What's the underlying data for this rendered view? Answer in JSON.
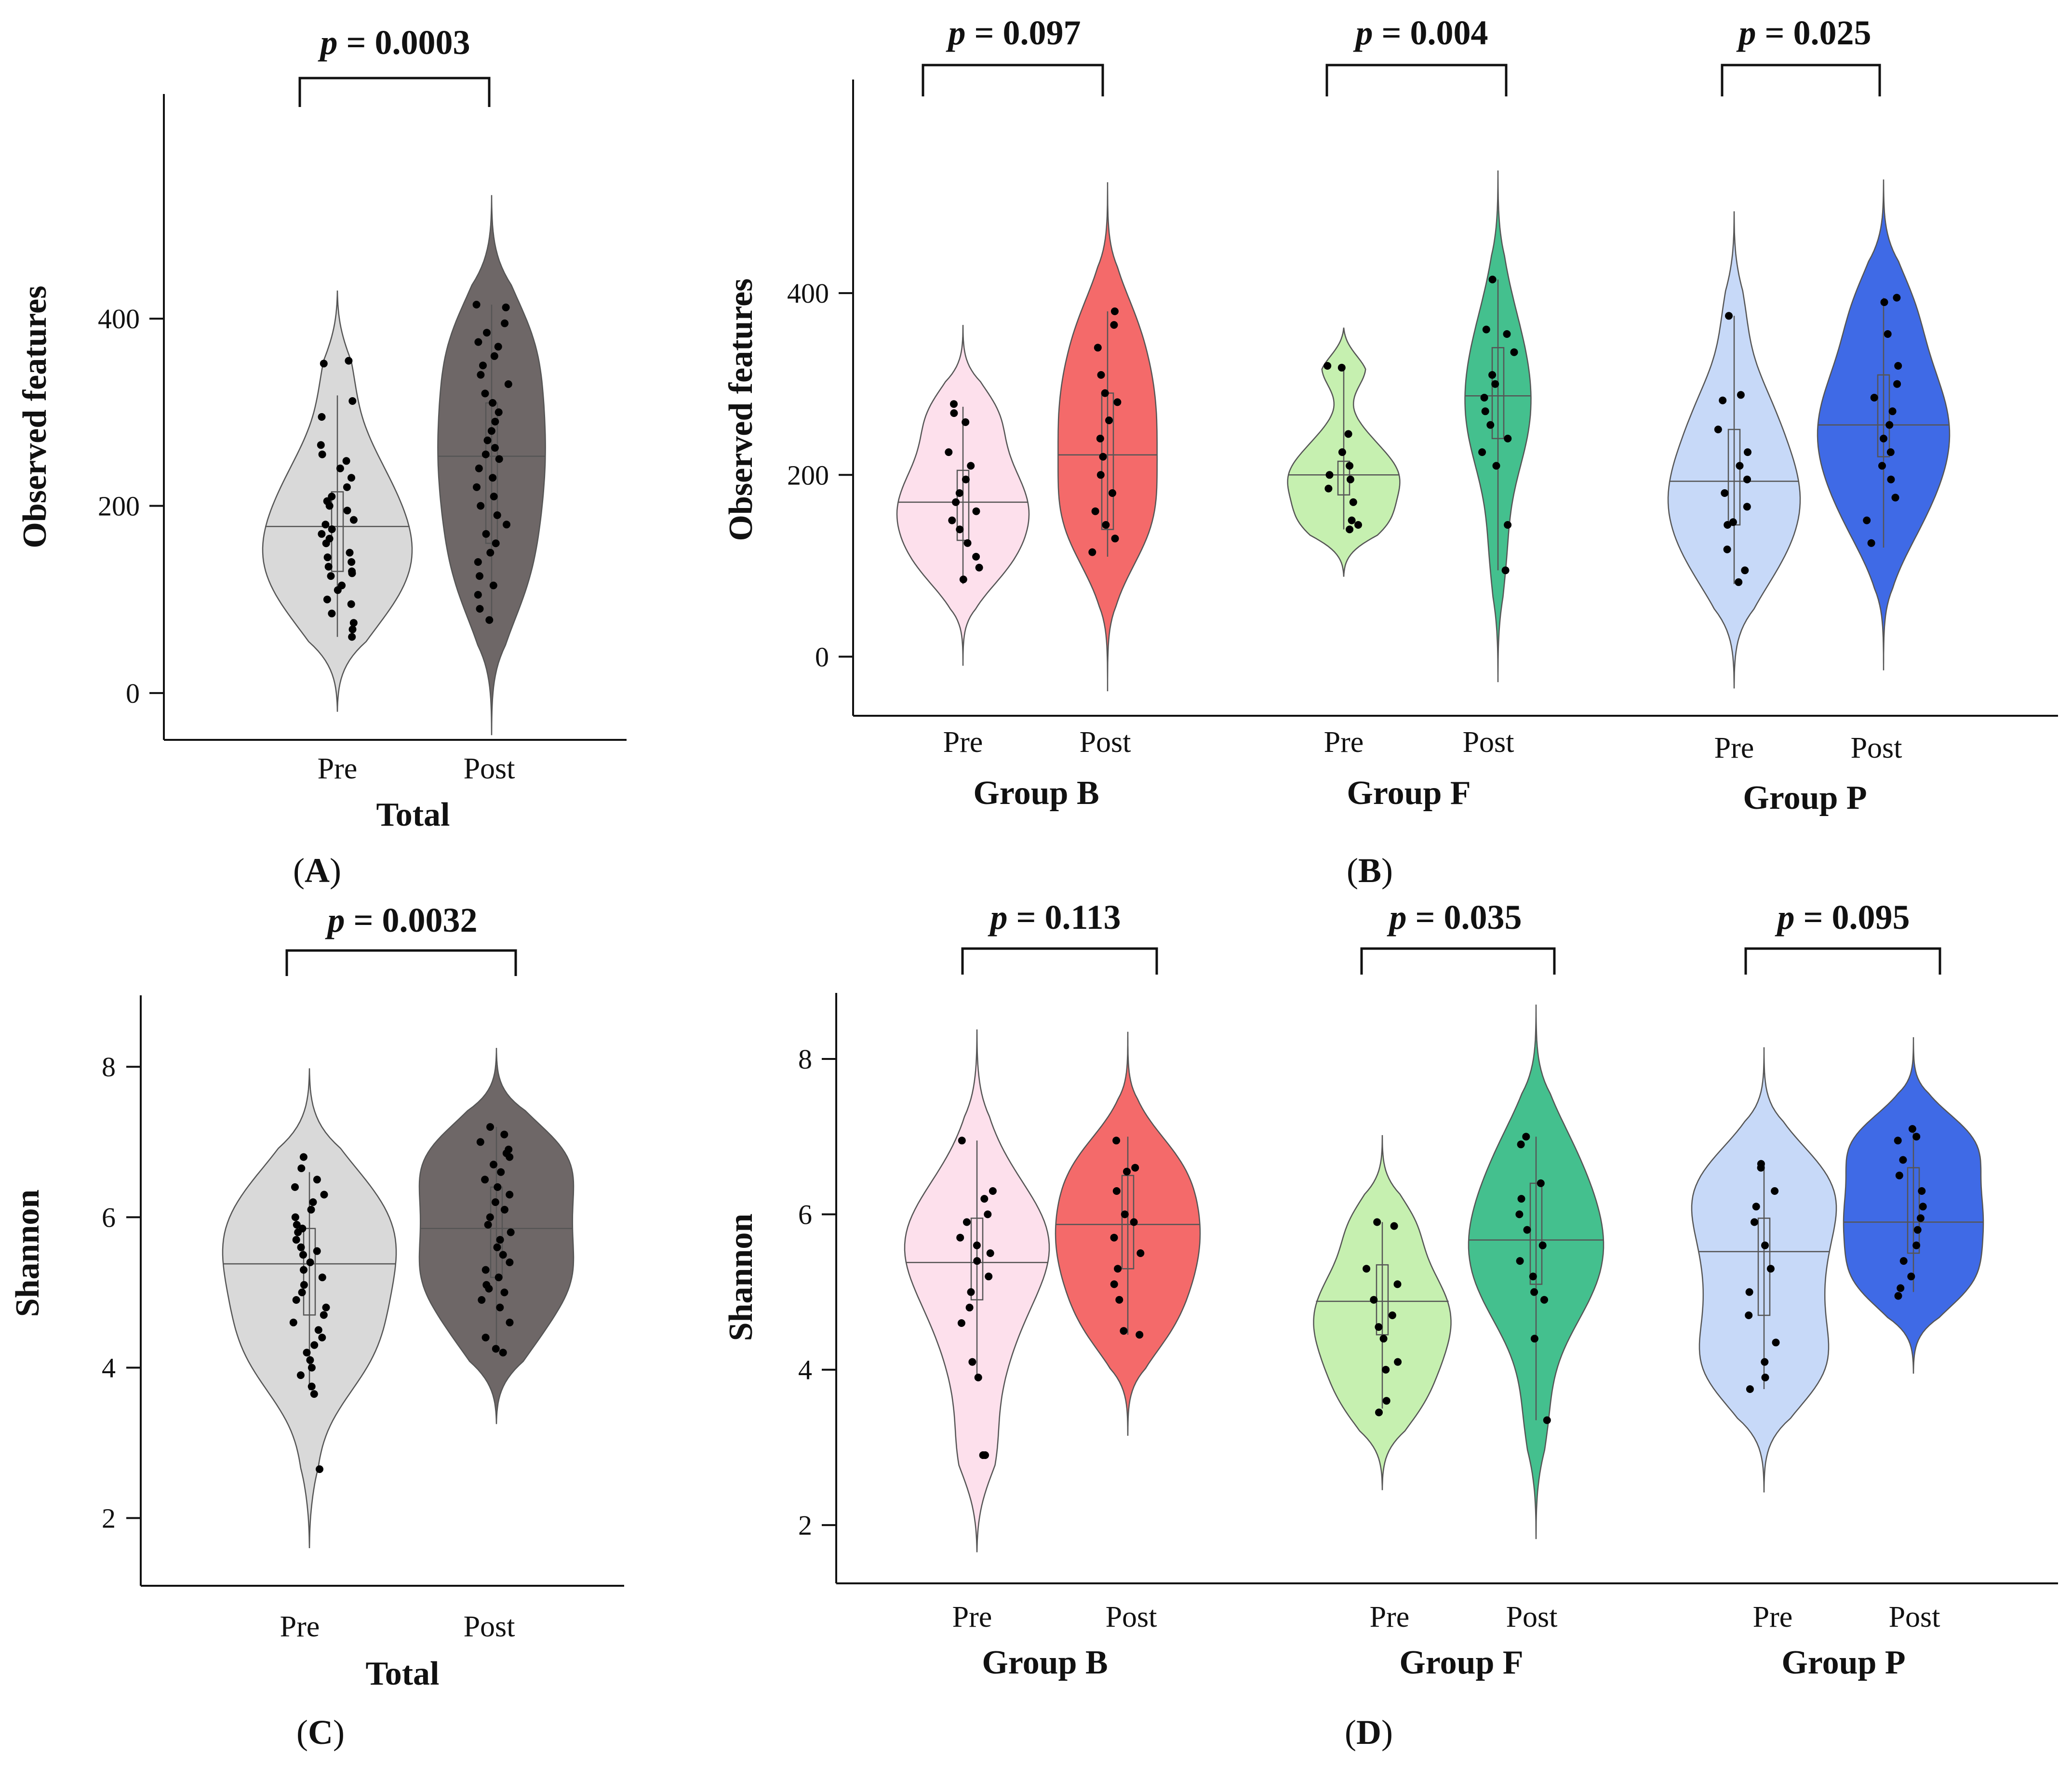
{
  "colors": {
    "total_pre": "#d9d9d9",
    "total_post": "#6e6767",
    "b_pre": "#fde0ec",
    "b_post": "#f46a6a",
    "f_pre": "#c6f0b0",
    "f_post": "#44c08e",
    "p_pre": "#c7d9f8",
    "p_post": "#3f6ae6"
  },
  "chart_data": [
    {
      "panel": "A",
      "type": "violin",
      "ylabel": "Observed features",
      "yticks": [
        0,
        200,
        400
      ],
      "ylim": [
        -50,
        640
      ],
      "groups": [
        {
          "name": "Total",
          "p_label": "p",
          "p_value": "= 0.0003",
          "series": [
            {
              "name": "Pre",
              "color_key": "total_pre",
              "median": 178,
              "q1": 130,
              "q3": 215,
              "wlo": 60,
              "whi": 318,
              "vmin": -20,
              "vmax": 430,
              "width": 1.0,
              "points": [
                352,
                355,
                312,
                295,
                265,
                255,
                248,
                240,
                230,
                220,
                210,
                205,
                200,
                195,
                185,
                180,
                175,
                170,
                165,
                160,
                150,
                145,
                140,
                135,
                130,
                128,
                125,
                115,
                110,
                100,
                95,
                85,
                75,
                68,
                60
              ]
            },
            {
              "name": "Post",
              "color_key": "total_post",
              "median": 253,
              "q1": 160,
              "q3": 310,
              "wlo": 80,
              "whi": 415,
              "vmin": -45,
              "vmax": 532,
              "width": 0.72,
              "points": [
                415,
                412,
                395,
                385,
                375,
                370,
                360,
                350,
                340,
                330,
                320,
                310,
                300,
                290,
                280,
                270,
                262,
                255,
                250,
                240,
                230,
                220,
                210,
                200,
                190,
                180,
                170,
                160,
                150,
                140,
                125,
                115,
                105,
                90,
                78
              ]
            }
          ]
        }
      ]
    },
    {
      "panel": "B",
      "type": "violin",
      "ylabel": "Observed features",
      "yticks": [
        0,
        200,
        400
      ],
      "ylim": [
        -65,
        635
      ],
      "groups": [
        {
          "name": "Group B",
          "p_label": "p",
          "p_value": "= 0.097",
          "series": [
            {
              "name": "Pre",
              "color_key": "b_pre",
              "median": 170,
              "q1": 128,
              "q3": 205,
              "wlo": 80,
              "whi": 275,
              "vmin": -10,
              "vmax": 365,
              "width": 1.0,
              "points": [
                278,
                268,
                258,
                225,
                210,
                195,
                180,
                170,
                160,
                150,
                140,
                125,
                110,
                98,
                85
              ]
            },
            {
              "name": "Post",
              "color_key": "b_post",
              "median": 222,
              "q1": 140,
              "q3": 290,
              "wlo": 110,
              "whi": 380,
              "vmin": -38,
              "vmax": 522,
              "width": 0.75,
              "points": [
                380,
                365,
                340,
                310,
                290,
                280,
                260,
                240,
                220,
                200,
                180,
                160,
                145,
                130,
                115
              ]
            }
          ]
        },
        {
          "name": "Group F",
          "p_label": "p",
          "p_value": "= 0.004",
          "series": [
            {
              "name": "Pre",
              "color_key": "f_pre",
              "median": 200,
              "q1": 178,
              "q3": 215,
              "wlo": 140,
              "whi": 320,
              "vmin": 88,
              "vmax": 362,
              "width": 0.85,
              "points": [
                320,
                318,
                245,
                225,
                210,
                200,
                195,
                185,
                170,
                150,
                145,
                140
              ]
            },
            {
              "name": "Post",
              "color_key": "f_post",
              "median": 287,
              "q1": 240,
              "q3": 340,
              "wlo": 95,
              "whi": 415,
              "vmin": -28,
              "vmax": 535,
              "width": 0.5,
              "points": [
                415,
                360,
                355,
                335,
                310,
                300,
                285,
                270,
                255,
                240,
                225,
                210,
                145,
                95
              ]
            }
          ]
        },
        {
          "name": "Group P",
          "p_label": "p",
          "p_value": "= 0.025",
          "series": [
            {
              "name": "Pre",
              "color_key": "p_pre",
              "median": 193,
              "q1": 145,
              "q3": 250,
              "wlo": 80,
              "whi": 375,
              "vmin": -35,
              "vmax": 490,
              "width": 1.0,
              "points": [
                375,
                288,
                282,
                250,
                225,
                210,
                195,
                180,
                165,
                148,
                145,
                118,
                95,
                82
              ]
            },
            {
              "name": "Post",
              "color_key": "p_post",
              "median": 255,
              "q1": 220,
              "q3": 310,
              "wlo": 120,
              "whi": 395,
              "vmin": -15,
              "vmax": 525,
              "width": 1.0,
              "points": [
                395,
                390,
                355,
                320,
                300,
                285,
                270,
                255,
                240,
                225,
                210,
                195,
                175,
                150,
                125
              ]
            }
          ]
        }
      ]
    },
    {
      "panel": "C",
      "type": "violin",
      "ylabel": "Shannon",
      "yticks": [
        2,
        4,
        6,
        8
      ],
      "ylim": [
        1.1,
        8.95
      ],
      "groups": [
        {
          "name": "Total",
          "p_label": "p",
          "p_value": "= 0.0032",
          "series": [
            {
              "name": "Pre",
              "color_key": "total_pre",
              "median": 5.38,
              "q1": 4.7,
              "q3": 5.85,
              "wlo": 3.7,
              "whi": 6.6,
              "vmin": 1.6,
              "vmax": 7.98,
              "width": 1.0,
              "points": [
                6.8,
                6.65,
                6.5,
                6.4,
                6.3,
                6.2,
                6.1,
                6.0,
                5.9,
                5.85,
                5.8,
                5.7,
                5.6,
                5.55,
                5.5,
                5.4,
                5.3,
                5.2,
                5.1,
                5.0,
                4.9,
                4.8,
                4.7,
                4.6,
                4.5,
                4.4,
                4.3,
                4.2,
                4.1,
                4.0,
                3.9,
                3.75,
                3.65,
                2.65
              ]
            },
            {
              "name": "Post",
              "color_key": "total_post",
              "median": 5.85,
              "q1": 5.2,
              "q3": 6.4,
              "wlo": 4.2,
              "whi": 7.2,
              "vmin": 3.25,
              "vmax": 8.25,
              "width": 1.0,
              "points": [
                7.2,
                7.1,
                7.0,
                6.9,
                6.85,
                6.8,
                6.7,
                6.6,
                6.5,
                6.4,
                6.3,
                6.2,
                6.1,
                6.0,
                5.9,
                5.8,
                5.7,
                5.6,
                5.5,
                5.4,
                5.3,
                5.2,
                5.1,
                5.05,
                5.0,
                4.9,
                4.8,
                4.6,
                4.4,
                4.25,
                4.2
              ]
            }
          ]
        }
      ]
    },
    {
      "panel": "D",
      "type": "violin",
      "ylabel": "Shannon",
      "yticks": [
        2,
        4,
        6,
        8
      ],
      "ylim": [
        1.25,
        8.85
      ],
      "groups": [
        {
          "name": "Group B",
          "p_label": "p",
          "p_value": "= 0.113",
          "series": [
            {
              "name": "Pre",
              "color_key": "b_pre",
              "median": 5.38,
              "q1": 4.9,
              "q3": 5.95,
              "wlo": 3.9,
              "whi": 6.95,
              "vmin": 1.65,
              "vmax": 8.38,
              "width": 1.0,
              "points": [
                6.95,
                6.3,
                6.2,
                6.0,
                5.9,
                5.7,
                5.6,
                5.5,
                5.4,
                5.2,
                5.0,
                4.8,
                4.6,
                4.1,
                3.9,
                2.9,
                2.9
              ]
            },
            {
              "name": "Post",
              "color_key": "b_post",
              "median": 5.87,
              "q1": 5.3,
              "q3": 6.5,
              "wlo": 4.45,
              "whi": 7.0,
              "vmin": 3.15,
              "vmax": 8.35,
              "width": 1.0,
              "points": [
                6.95,
                6.6,
                6.55,
                6.3,
                6.0,
                5.9,
                5.7,
                5.5,
                5.3,
                5.1,
                4.9,
                4.5,
                4.45
              ]
            }
          ]
        },
        {
          "name": "Group F",
          "p_label": "p",
          "p_value": "= 0.035",
          "series": [
            {
              "name": "Pre",
              "color_key": "f_pre",
              "median": 4.88,
              "q1": 4.45,
              "q3": 5.35,
              "wlo": 3.5,
              "whi": 5.9,
              "vmin": 2.45,
              "vmax": 7.02,
              "width": 0.95,
              "points": [
                5.9,
                5.85,
                5.3,
                5.1,
                4.9,
                4.7,
                4.55,
                4.4,
                4.1,
                4.0,
                3.6,
                3.45
              ]
            },
            {
              "name": "Post",
              "color_key": "f_post",
              "median": 5.67,
              "q1": 5.1,
              "q3": 6.4,
              "wlo": 3.35,
              "whi": 7.0,
              "vmin": 1.82,
              "vmax": 8.7,
              "width": 1.0,
              "points": [
                7.0,
                6.9,
                6.4,
                6.2,
                6.0,
                5.8,
                5.6,
                5.4,
                5.2,
                5.0,
                4.9,
                4.4,
                3.35
              ]
            }
          ]
        },
        {
          "name": "Group P",
          "p_label": "p",
          "p_value": "= 0.095",
          "series": [
            {
              "name": "Pre",
              "color_key": "p_pre",
              "median": 5.52,
              "q1": 4.7,
              "q3": 5.95,
              "wlo": 3.75,
              "whi": 6.65,
              "vmin": 2.42,
              "vmax": 8.15,
              "width": 1.0,
              "points": [
                6.65,
                6.6,
                6.3,
                6.1,
                5.9,
                5.6,
                5.3,
                5.0,
                4.7,
                4.35,
                4.1,
                3.9,
                3.75
              ]
            },
            {
              "name": "Post",
              "color_key": "p_post",
              "median": 5.9,
              "q1": 5.5,
              "q3": 6.6,
              "wlo": 5.0,
              "whi": 7.1,
              "vmin": 3.95,
              "vmax": 8.28,
              "width": 1.0,
              "points": [
                7.1,
                7.0,
                6.95,
                6.7,
                6.5,
                6.3,
                6.1,
                5.95,
                5.8,
                5.6,
                5.4,
                5.2,
                5.05,
                4.95
              ]
            }
          ]
        }
      ]
    }
  ]
}
